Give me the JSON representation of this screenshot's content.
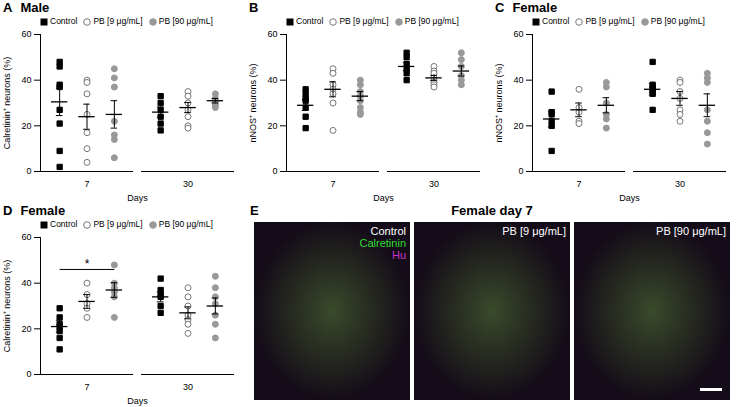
{
  "chart_data": [
    {
      "type": "scatter",
      "panel": "A",
      "title": "Male",
      "y_label": "Calretinin⁺ neurons (%)",
      "x_label": "Days",
      "categories": [
        "7",
        "30"
      ],
      "ylim": [
        0,
        60
      ],
      "yticks": [
        0,
        20,
        40,
        60
      ],
      "legend": "top-left",
      "series": [
        {
          "name": "Control",
          "color": "#000000",
          "marker": "square",
          "values": [
            [
              48,
              46,
              38,
              37,
              27,
              21,
              9,
              2
            ],
            [
              33,
              30,
              27,
              24,
              21,
              18
            ]
          ],
          "mean": [
            30.5,
            26
          ],
          "sem": [
            6,
            2.2
          ]
        },
        {
          "name": "PB [9 μg/mL]",
          "color": "#777777",
          "marker": "circle-open",
          "values": [
            [
              40,
              39,
              34,
              25,
              17,
              10,
              4
            ],
            [
              35,
              33,
              30,
              27,
              24,
              20,
              19
            ]
          ],
          "mean": [
            24,
            28
          ],
          "sem": [
            5.5,
            2.2
          ]
        },
        {
          "name": "PB [90 μg/mL]",
          "color": "#999999",
          "marker": "circle",
          "values": [
            [
              45,
              41,
              37,
              22,
              16,
              14,
              6
            ],
            [
              34,
              32,
              31,
              30,
              29,
              28
            ]
          ],
          "mean": [
            25,
            31
          ],
          "sem": [
            6,
            1
          ]
        }
      ]
    },
    {
      "type": "scatter",
      "panel": "B",
      "y_label": "nNOS⁺ neurons (%)",
      "x_label": "Days",
      "categories": [
        "7",
        "30"
      ],
      "ylim": [
        0,
        60
      ],
      "yticks": [
        0,
        20,
        40,
        60
      ],
      "legend": "top-left",
      "series": [
        {
          "name": "Control",
          "color": "#000000",
          "marker": "square",
          "values": [
            [
              36,
              34,
              32,
              31,
              28,
              24,
              19
            ],
            [
              52,
              50,
              47,
              45,
              43,
              40
            ]
          ],
          "mean": [
            29,
            46
          ],
          "sem": [
            2.3,
            1.8
          ]
        },
        {
          "name": "PB [9 μg/mL]",
          "color": "#777777",
          "marker": "circle-open",
          "values": [
            [
              45,
              43,
              38,
              36,
              34,
              30,
              18
            ],
            [
              46,
              44,
              43,
              41,
              40,
              39,
              38,
              37
            ]
          ],
          "mean": [
            36,
            41
          ],
          "sem": [
            3.3,
            1.1
          ]
        },
        {
          "name": "PB [90 μg/mL]",
          "color": "#999999",
          "marker": "circle",
          "values": [
            [
              40,
              38,
              35,
              33,
              31,
              28,
              26,
              25
            ],
            [
              52,
              49,
              46,
              42,
              40,
              38
            ]
          ],
          "mean": [
            33,
            44
          ],
          "sem": [
            2,
            2.2
          ]
        }
      ]
    },
    {
      "type": "scatter",
      "panel": "C",
      "title": "Female",
      "y_label": "nNOS⁺ neurons (%)",
      "x_label": "Days",
      "categories": [
        "7",
        "30"
      ],
      "ylim": [
        0,
        60
      ],
      "yticks": [
        0,
        20,
        40,
        60
      ],
      "legend": "top-left",
      "series": [
        {
          "name": "Control",
          "color": "#000000",
          "marker": "square",
          "values": [
            [
              35,
              26,
              25,
              22,
              20,
              9
            ],
            [
              48,
              38,
              37,
              36,
              35,
              34,
              27
            ]
          ],
          "mean": [
            23,
            36
          ],
          "sem": [
            3.5,
            2.5
          ]
        },
        {
          "name": "PB [9 μg/mL]",
          "color": "#777777",
          "marker": "circle-open",
          "values": [
            [
              36,
              28,
              26,
              22,
              21
            ],
            [
              40,
              39,
              35,
              32,
              27,
              25,
              22
            ]
          ],
          "mean": [
            27,
            32
          ],
          "sem": [
            3,
            3
          ]
        },
        {
          "name": "PB [90 μg/mL]",
          "color": "#999999",
          "marker": "circle",
          "values": [
            [
              39,
              37,
              30,
              25,
              23,
              19
            ],
            [
              43,
              41,
              39,
              27,
              22,
              17,
              12
            ]
          ],
          "mean": [
            29,
            29
          ],
          "sem": [
            3.3,
            5
          ]
        }
      ]
    },
    {
      "type": "scatter",
      "panel": "D",
      "title": "Female",
      "y_label": "Calretinin⁺ neurons (%)",
      "x_label": "Days",
      "categories": [
        "7",
        "30"
      ],
      "ylim": [
        0,
        60
      ],
      "yticks": [
        0,
        20,
        40,
        60
      ],
      "legend": "top-left",
      "annotations": [
        {
          "text": "*",
          "category": "7",
          "from": "Control",
          "to": "PB [90 μg/mL]",
          "y": 46
        }
      ],
      "series": [
        {
          "name": "Control",
          "color": "#000000",
          "marker": "square",
          "values": [
            [
              29,
              25,
              22,
              21,
              19,
              16,
              11
            ],
            [
              42,
              37,
              35,
              34,
              30,
              27
            ]
          ],
          "mean": [
            21,
            34
          ],
          "sem": [
            2.5,
            2.2
          ]
        },
        {
          "name": "PB [9 μg/mL]",
          "color": "#777777",
          "marker": "circle-open",
          "values": [
            [
              40,
              35,
              31,
              29,
              25
            ],
            [
              38,
              34,
              30,
              26,
              24,
              22,
              18
            ]
          ],
          "mean": [
            32,
            27
          ],
          "sem": [
            3,
            2.6
          ]
        },
        {
          "name": "PB [90 μg/mL]",
          "color": "#999999",
          "marker": "circle",
          "values": [
            [
              48,
              40,
              38,
              36,
              34,
              25
            ],
            [
              43,
              38,
              34,
              31,
              26,
              22,
              16
            ]
          ],
          "mean": [
            37,
            30
          ],
          "sem": [
            3.2,
            3.5
          ]
        }
      ]
    }
  ],
  "image_panel": {
    "panel": "E",
    "title": "Female day 7",
    "images": [
      {
        "label": "Control",
        "channels": [
          {
            "name": "Calretinin",
            "color": "#33dd33"
          },
          {
            "name": "Hu",
            "color": "#cc33cc"
          }
        ]
      },
      {
        "label": "PB [9 μg/mL]"
      },
      {
        "label": "PB [90 μg/mL]"
      }
    ]
  }
}
